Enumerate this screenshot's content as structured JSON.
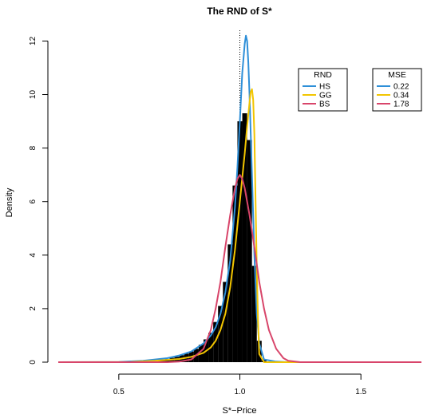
{
  "chart_data": {
    "type": "line",
    "title": "The RND of S*",
    "xlabel": "S*−Price",
    "ylabel": "Density",
    "xlim": [
      0.25,
      1.75
    ],
    "ylim": [
      0,
      12.4
    ],
    "x_ticks": [
      0.5,
      1.0,
      1.5
    ],
    "x_tick_labels": [
      "0.5",
      "1.0",
      "1.5"
    ],
    "y_ticks": [
      0,
      2,
      4,
      6,
      8,
      10,
      12
    ],
    "y_tick_labels": [
      "0",
      "2",
      "4",
      "6",
      "8",
      "10",
      "12"
    ],
    "reference_line_x": 1.0,
    "histogram": {
      "color": "#000000",
      "x": [
        0.62,
        0.64,
        0.66,
        0.68,
        0.7,
        0.72,
        0.74,
        0.76,
        0.78,
        0.8,
        0.82,
        0.84,
        0.86,
        0.88,
        0.9,
        0.92,
        0.94,
        0.96,
        0.98,
        1.0,
        1.02,
        1.04,
        1.06,
        1.08,
        1.1,
        1.12
      ],
      "values": [
        0.03,
        0.05,
        0.07,
        0.1,
        0.12,
        0.16,
        0.2,
        0.26,
        0.32,
        0.4,
        0.5,
        0.65,
        0.85,
        1.1,
        1.5,
        2.1,
        3.0,
        4.4,
        6.6,
        9.0,
        9.3,
        8.3,
        3.6,
        0.8,
        0.1,
        0.02
      ]
    },
    "legends": [
      {
        "title": "RND",
        "entries": [
          {
            "label": "HS",
            "color": "#2e8fd8"
          },
          {
            "label": "GG",
            "color": "#f2c500"
          },
          {
            "label": "BS",
            "color": "#d8456a"
          }
        ]
      },
      {
        "title": "MSE",
        "entries": [
          {
            "label": "0.22",
            "color": "#2e8fd8"
          },
          {
            "label": "0.34",
            "color": "#f2c500"
          },
          {
            "label": "1.78",
            "color": "#d8456a"
          }
        ]
      }
    ],
    "series": [
      {
        "color": "#2e8fd8",
        "x": [
          0.25,
          0.5,
          0.6,
          0.7,
          0.75,
          0.8,
          0.85,
          0.88,
          0.9,
          0.92,
          0.94,
          0.96,
          0.98,
          0.99,
          1.0,
          1.01,
          1.02,
          1.025,
          1.03,
          1.035,
          1.04,
          1.05,
          1.06,
          1.07,
          1.08,
          1.1,
          1.15,
          1.2,
          1.75
        ],
        "y": [
          0,
          0.005,
          0.05,
          0.15,
          0.25,
          0.4,
          0.7,
          1.0,
          1.3,
          1.8,
          2.6,
          3.8,
          5.8,
          7.3,
          9.0,
          10.8,
          11.9,
          12.2,
          12.0,
          11.2,
          10.0,
          7.0,
          4.0,
          1.8,
          0.7,
          0.1,
          0.02,
          0,
          0
        ]
      },
      {
        "color": "#f2c500",
        "x": [
          0.25,
          0.55,
          0.65,
          0.75,
          0.8,
          0.85,
          0.88,
          0.9,
          0.92,
          0.94,
          0.96,
          0.98,
          1.0,
          1.02,
          1.03,
          1.04,
          1.045,
          1.05,
          1.055,
          1.06,
          1.065,
          1.07,
          1.075,
          1.08,
          1.1,
          1.75
        ],
        "y": [
          0,
          0.01,
          0.05,
          0.12,
          0.2,
          0.35,
          0.55,
          0.8,
          1.2,
          1.8,
          2.8,
          4.2,
          6.0,
          7.8,
          8.8,
          9.7,
          10.1,
          10.2,
          9.8,
          8.5,
          6.0,
          3.5,
          1.5,
          0.3,
          0,
          0
        ]
      },
      {
        "color": "#d8456a",
        "x": [
          0.25,
          0.7,
          0.75,
          0.8,
          0.85,
          0.88,
          0.9,
          0.92,
          0.94,
          0.96,
          0.98,
          0.99,
          1.0,
          1.01,
          1.02,
          1.04,
          1.06,
          1.08,
          1.1,
          1.12,
          1.15,
          1.18,
          1.2,
          1.25,
          1.75
        ],
        "y": [
          0,
          0,
          0.02,
          0.1,
          0.5,
          1.2,
          2.0,
          3.0,
          4.3,
          5.5,
          6.5,
          6.85,
          7.0,
          6.85,
          6.5,
          5.5,
          4.3,
          3.0,
          2.0,
          1.2,
          0.5,
          0.15,
          0.05,
          0,
          0
        ]
      }
    ]
  }
}
